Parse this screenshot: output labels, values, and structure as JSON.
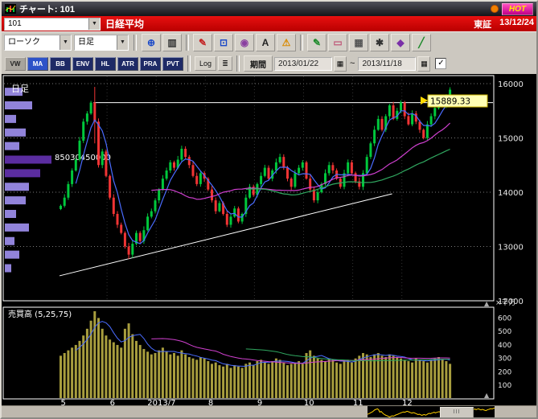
{
  "window": {
    "title": "チャート: 101",
    "hot_label": "HOT"
  },
  "icons": {
    "dropdown": "▼",
    "calendar": "▦",
    "check": "✓",
    "scale": "≣",
    "up_arrow": "▲"
  },
  "symbol_bar": {
    "code": "101",
    "name": "日経平均",
    "exchange": "東証",
    "date": "13/12/24"
  },
  "toolbar": {
    "chart_type": "ローソク",
    "interval": "日足",
    "icon_buttons": [
      {
        "name": "zoom-in-icon",
        "glyph": "⊕",
        "color": "#1a49c8"
      },
      {
        "name": "chart-window-icon",
        "glyph": "▥",
        "color": "#333333"
      },
      {
        "sep": true
      },
      {
        "name": "draw-line-red-icon",
        "glyph": "✎",
        "color": "#c32222"
      },
      {
        "name": "zoom-range-icon",
        "glyph": "⊡",
        "color": "#1a49c8"
      },
      {
        "name": "stamp-icon",
        "glyph": "◉",
        "color": "#8a3fa0"
      },
      {
        "name": "text-tool-icon",
        "glyph": "A",
        "color": "#222222"
      },
      {
        "name": "alert-icon",
        "glyph": "⚠",
        "color": "#d98a00"
      },
      {
        "sep": true
      },
      {
        "name": "draw-pencil-icon",
        "glyph": "✎",
        "color": "#1d8a2a"
      },
      {
        "name": "eraser-icon",
        "glyph": "▭",
        "color": "#c05a7a"
      },
      {
        "name": "grid-icon",
        "glyph": "▦",
        "color": "#555555"
      },
      {
        "name": "settings-icon",
        "glyph": "✱",
        "color": "#333333"
      },
      {
        "name": "palette-icon",
        "glyph": "◆",
        "color": "#7a2fa8"
      },
      {
        "name": "trend-chart-icon",
        "glyph": "╱",
        "color": "#1d8a2a"
      }
    ],
    "indicators": [
      {
        "label": "VW",
        "style": "gray"
      },
      {
        "label": "MA",
        "style": "blue"
      },
      {
        "label": "BB",
        "style": "navy"
      },
      {
        "label": "ENV",
        "style": "navy"
      },
      {
        "label": "HL",
        "style": "navy"
      },
      {
        "label": "ATR",
        "style": "navy"
      },
      {
        "label": "PRA",
        "style": "navy"
      },
      {
        "label": "PVT",
        "style": "navy"
      }
    ],
    "log_label": "Log",
    "period_label": "期間",
    "date_from": "2013/01/22",
    "date_to": "2013/11/18",
    "range_sep": "~"
  },
  "chart_data": {
    "type": "candlestick",
    "title": "日足",
    "symbol": "日経平均",
    "last_price": 15889.33,
    "y_ticks": [
      16000,
      15000,
      14000,
      13000,
      12000
    ],
    "x_tick_labels": [
      "5",
      "6",
      "2013/7",
      "8",
      "9",
      "10",
      "11",
      "12"
    ],
    "days_per_month": 13,
    "closes": [
      13750,
      13900,
      14150,
      14400,
      14600,
      14950,
      15300,
      15450,
      15650,
      15300,
      14500,
      14750,
      14300,
      13900,
      13600,
      13400,
      13250,
      13000,
      12850,
      13050,
      13250,
      13100,
      13300,
      13550,
      13650,
      13850,
      14050,
      14250,
      14400,
      14550,
      14450,
      14600,
      14800,
      14650,
      14500,
      14300,
      14150,
      14350,
      14250,
      14050,
      13850,
      13650,
      13800,
      13600,
      13400,
      13550,
      13700,
      13460,
      13600,
      13900,
      14100,
      13950,
      14150,
      14300,
      14450,
      14250,
      14400,
      14550,
      14650,
      14450,
      14250,
      14100,
      14350,
      14450,
      14550,
      14250,
      14050,
      13850,
      14000,
      14150,
      14350,
      14500,
      14400,
      14250,
      14100,
      14350,
      14550,
      14350,
      14200,
      14100,
      14350,
      14650,
      14900,
      15150,
      15350,
      15150,
      15400,
      15600,
      15350,
      15500,
      15650,
      15400,
      15250,
      15450,
      15300,
      15150,
      15000,
      15250,
      15400,
      15550,
      15700,
      15600,
      15750,
      15889.33
    ],
    "volumes": [
      320,
      340,
      360,
      380,
      400,
      430,
      470,
      520,
      580,
      650,
      600,
      520,
      470,
      440,
      420,
      400,
      380,
      520,
      560,
      480,
      430,
      400,
      370,
      350,
      330,
      340,
      360,
      380,
      350,
      330,
      340,
      320,
      360,
      330,
      310,
      300,
      290,
      310,
      300,
      280,
      260,
      270,
      250,
      240,
      260,
      230,
      250,
      240,
      230,
      260,
      270,
      250,
      280,
      290,
      270,
      260,
      280,
      300,
      290,
      270,
      250,
      260,
      270,
      280,
      260,
      340,
      360,
      320,
      300,
      290,
      280,
      300,
      290,
      270,
      260,
      280,
      290,
      270,
      300,
      320,
      340,
      330,
      310,
      330,
      340,
      320,
      310,
      330,
      320,
      310,
      300,
      290,
      280,
      270,
      300,
      290,
      280,
      270,
      290,
      300,
      310,
      290,
      280,
      260
    ],
    "key_points": {
      "spike_index": 9,
      "spike_high": 15940,
      "spike_low": 14900,
      "trough_index": 18,
      "trough_low": 12770
    },
    "trendline": {
      "start_index": 0,
      "start_price": 12460,
      "end_index": 88,
      "end_price": 13970
    },
    "resistance_price": 15650,
    "moving_averages": {
      "periods": [
        5,
        25,
        50
      ],
      "colors": [
        "#4a6cff",
        "#d040d0",
        "#30a860"
      ]
    },
    "volume_pane": {
      "label": "売買高 (5,25,75)",
      "unit": "×千万",
      "y_ticks": [
        600,
        500,
        400,
        300,
        200,
        100
      ],
      "max": 650
    },
    "volume_profile": {
      "label": "85030450000",
      "label_price": 14650,
      "bins": [
        [
          15850,
          22
        ],
        [
          15600,
          34
        ],
        [
          15350,
          14
        ],
        [
          15100,
          26
        ],
        [
          14850,
          18
        ],
        [
          14600,
          58
        ],
        [
          14350,
          44
        ],
        [
          14100,
          30
        ],
        [
          13850,
          26
        ],
        [
          13600,
          14
        ],
        [
          13350,
          30
        ],
        [
          13100,
          12
        ],
        [
          12850,
          18
        ],
        [
          12600,
          8
        ]
      ]
    },
    "colors": {
      "up": "#00c83c",
      "down": "#f03434",
      "grid": "#7a7a7a",
      "volume_bar": "#a89e3e",
      "marker_bg": "#ffffb4",
      "marker_arrow": "#ffd900"
    }
  },
  "scrollbar": {
    "grip": "III"
  }
}
